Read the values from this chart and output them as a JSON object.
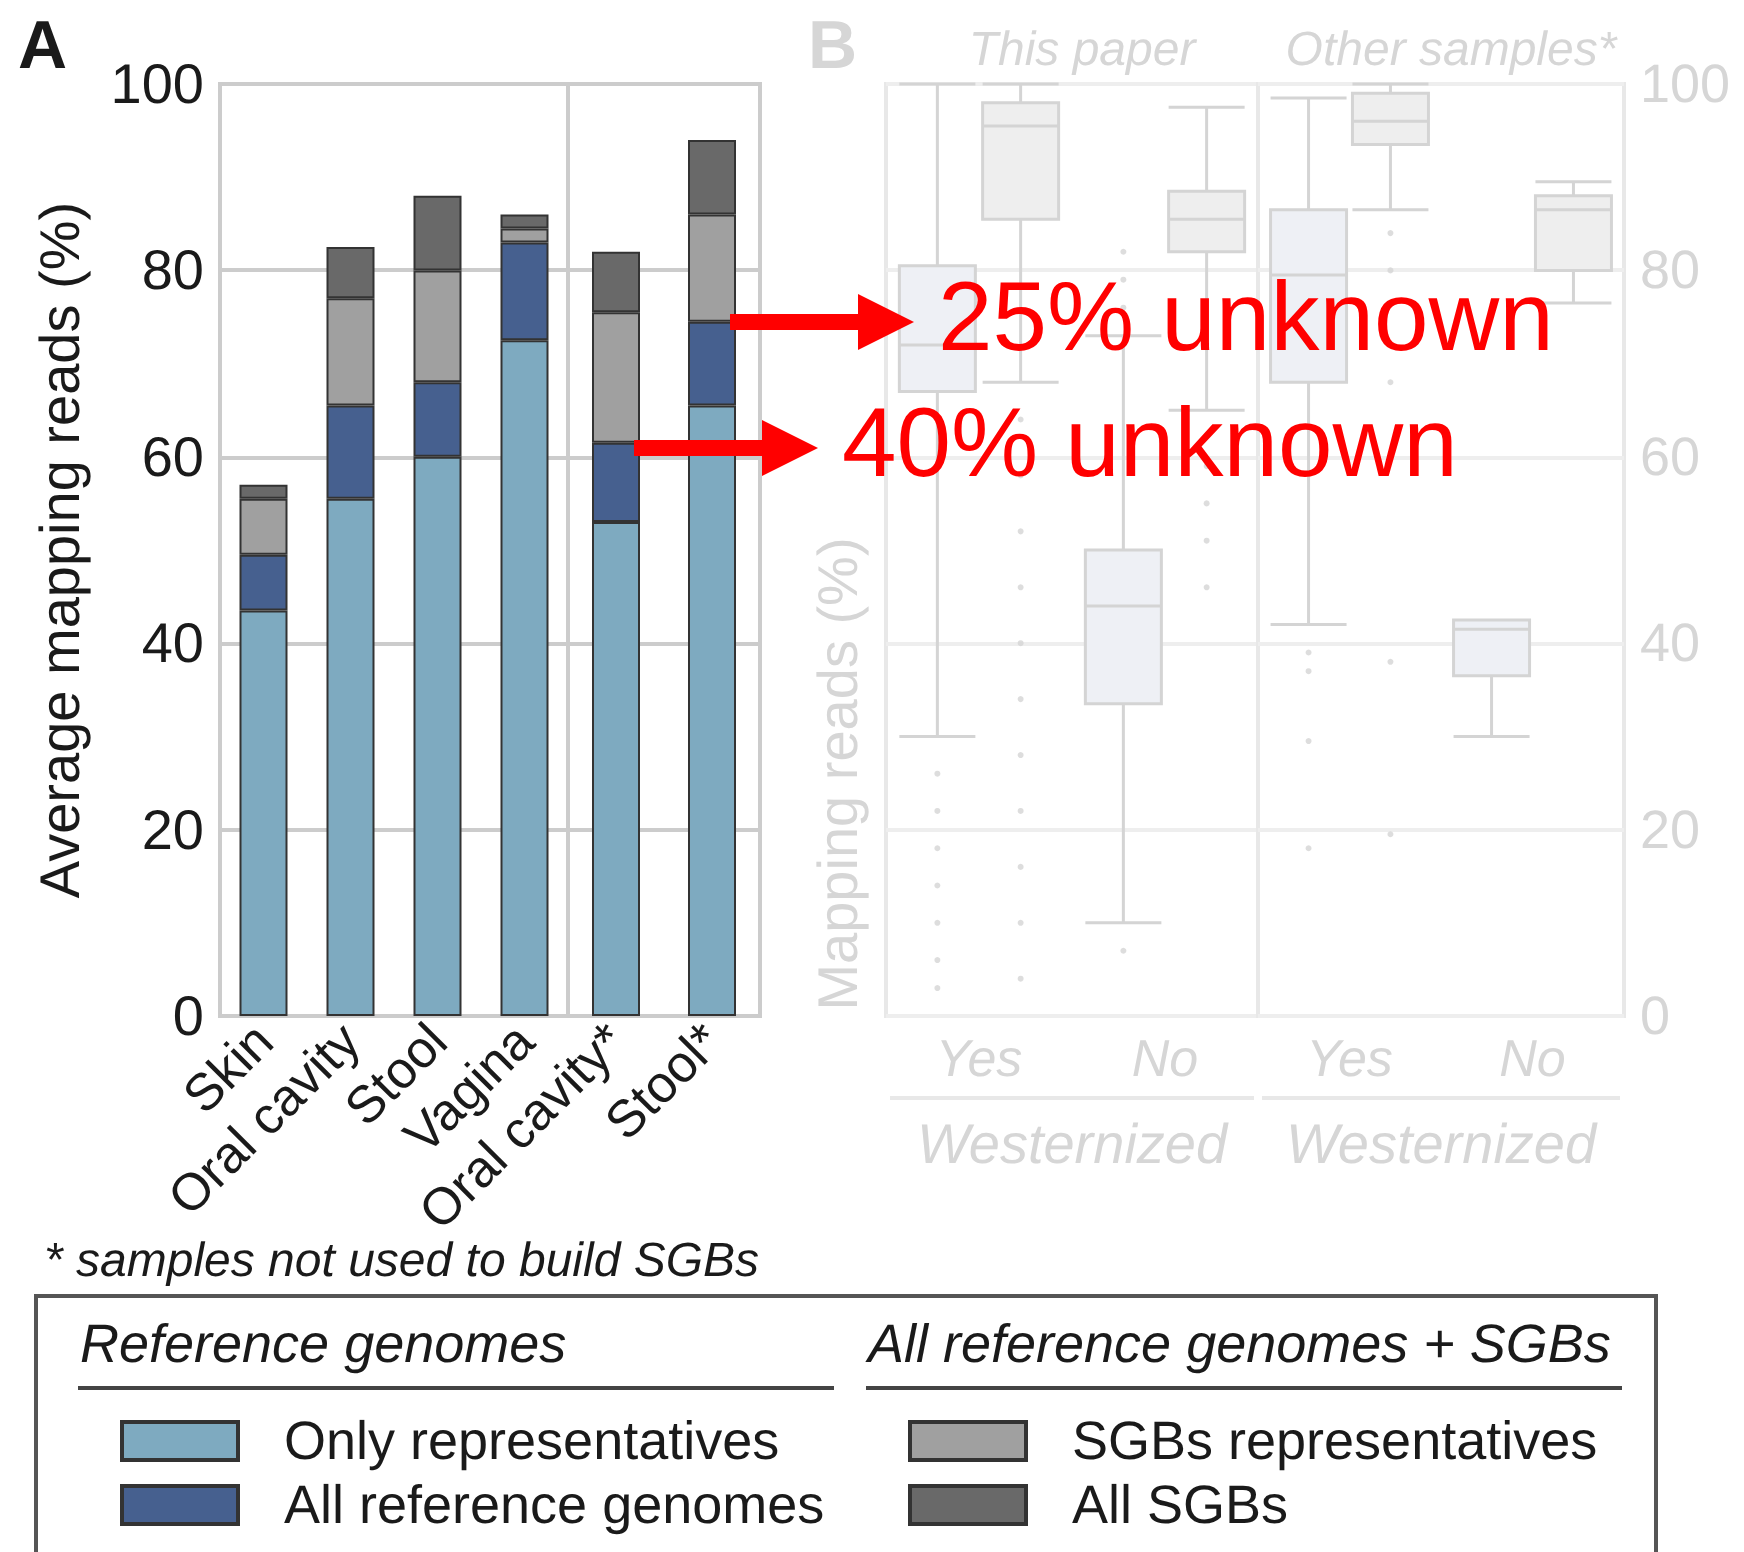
{
  "chart_data": [
    {
      "type": "bar",
      "stacked": true,
      "annotations": [
        "A",
        "* samples not used to build SGBs",
        "Reference genomes",
        "All reference genomes + SGBs"
      ],
      "ylabel": "Average mapping reads (%)",
      "categories": [
        "Skin",
        "Oral cavity",
        "Stool",
        "Vagina"
      ],
      "ylim": [
        0,
        100
      ],
      "yticks": [
        0,
        20,
        40,
        60,
        80,
        100
      ],
      "grid": "y",
      "legend": "bottom",
      "series": [
        {
          "name": "Only representatives",
          "color": "#7eaac0",
          "values": [
            43.5,
            55.5,
            60,
            72.5
          ]
        },
        {
          "name": "All reference genomes",
          "color": "#46608f",
          "values": [
            6,
            10,
            8,
            10.5
          ]
        },
        {
          "name": "SGBs representatives",
          "color": "#a0a0a0",
          "values": [
            6,
            11.5,
            12,
            1.5
          ]
        },
        {
          "name": "All SGBs",
          "color": "#696969",
          "values": [
            1.5,
            5.5,
            8,
            1.5
          ]
        }
      ]
    },
    {
      "type": "bar",
      "stacked": true,
      "annotations": [
        {
          "text": "25% unknown",
          "x": "Stool*",
          "y": 74.5
        },
        {
          "text": "40% unknown",
          "x": "Oral cavity*",
          "y": 61
        }
      ],
      "categories": [
        "Oral cavity*",
        "Stool*"
      ],
      "ylim": [
        0,
        100
      ],
      "yticks": [
        0,
        20,
        40,
        60,
        80,
        100
      ],
      "tick_labels": "x",
      "grid": "y",
      "series": [
        {
          "color": "#7eaac0",
          "values": [
            53,
            65.5
          ]
        },
        {
          "color": "#46608f",
          "values": [
            8.5,
            9
          ]
        },
        {
          "color": "#a0a0a0",
          "values": [
            14,
            11.5
          ]
        },
        {
          "color": "#696969",
          "values": [
            6.5,
            8
          ]
        }
      ]
    },
    {
      "type": "box",
      "title": "This paper",
      "annotations": [
        "B"
      ],
      "xlabel": "Westernized",
      "ylabel": "Mapping reads (%)",
      "categories": [
        "Yes",
        "No"
      ],
      "ylim": [
        0,
        100
      ],
      "yticks": [
        0,
        20,
        40,
        60,
        80,
        100
      ],
      "tick_labels": "x",
      "grid": "y",
      "series": [
        {
          "color": "#eef0f5",
          "boxes": [
            {
              "low": 30,
              "q1": 67,
              "median": 72,
              "q3": 80.5,
              "high": 100,
              "outliers": [
                26,
                22,
                18,
                14,
                10,
                6,
                3
              ]
            },
            {
              "low": 10,
              "q1": 33.5,
              "median": 44,
              "q3": 50,
              "high": 73,
              "outliers": [
                7,
                76,
                79,
                82
              ]
            }
          ]
        },
        {
          "color": "#eeeeee",
          "boxes": [
            {
              "low": 68,
              "q1": 85.5,
              "median": 95.5,
              "q3": 98,
              "high": 100,
              "outliers": [
                64,
                58,
                52,
                46,
                40,
                34,
                28,
                22,
                16,
                10,
                4
              ]
            },
            {
              "low": 65,
              "q1": 82,
              "median": 85.5,
              "q3": 88.5,
              "high": 97.5,
              "outliers": [
                59,
                55,
                51,
                46
              ]
            }
          ]
        }
      ]
    },
    {
      "type": "box",
      "title": "Other samples*",
      "xlabel": "Westernized",
      "categories": [
        "Yes",
        "No"
      ],
      "ylim": [
        0,
        100
      ],
      "yticks": [
        0,
        20,
        40,
        60,
        80,
        100
      ],
      "grid": "y",
      "series": [
        {
          "color": "#eef0f5",
          "boxes": [
            {
              "low": 42,
              "q1": 68,
              "median": 79.5,
              "q3": 86.5,
              "high": 98.5,
              "outliers": [
                39,
                37,
                29.5,
                18
              ]
            },
            {
              "low": 30,
              "q1": 36.5,
              "median": 41.5,
              "q3": 42.5,
              "high": 42.5
            }
          ]
        },
        {
          "color": "#eeeeee",
          "boxes": [
            {
              "low": 86.5,
              "q1": 93.5,
              "median": 96,
              "q3": 99,
              "high": 100,
              "outliers": [
                84,
                80,
                68,
                38,
                19.5
              ]
            },
            {
              "low": 76.5,
              "q1": 80,
              "median": 86.5,
              "q3": 88,
              "high": 89.5
            }
          ]
        }
      ]
    }
  ]
}
